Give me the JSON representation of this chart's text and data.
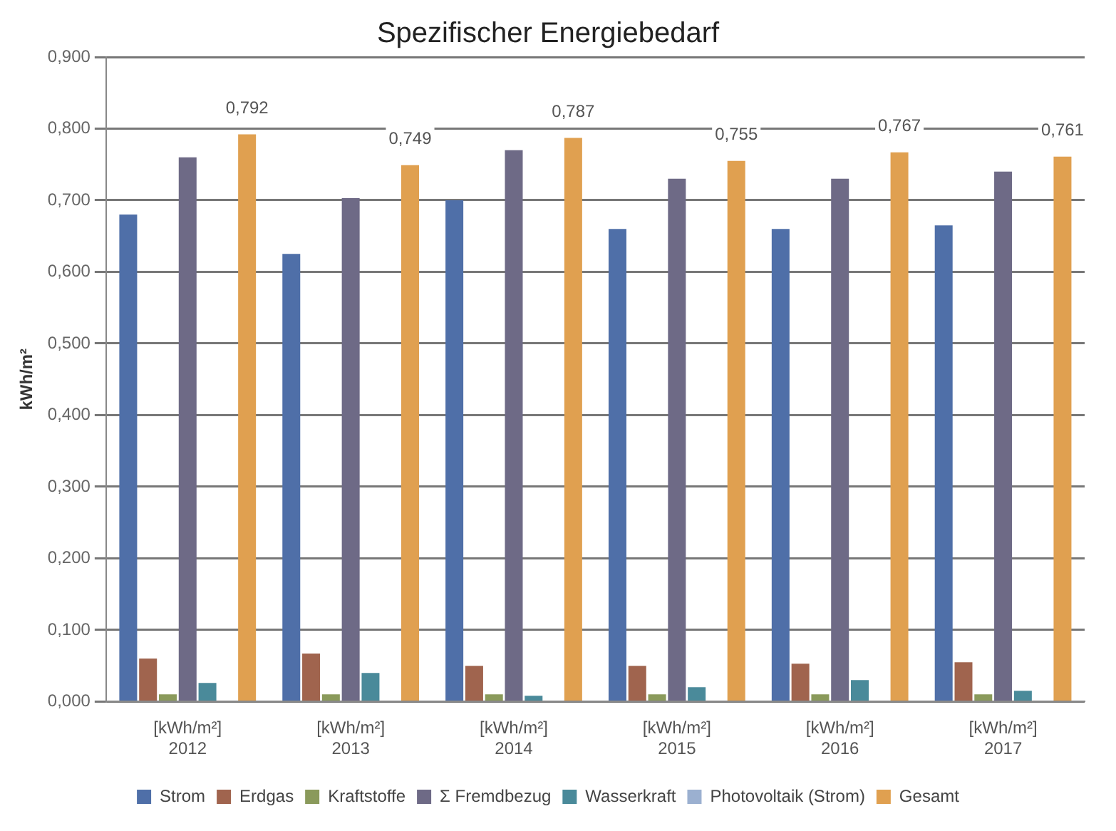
{
  "chart_data": {
    "type": "bar",
    "title": "Spezifischer Energiebedarf",
    "ylabel": "kWh/m²",
    "categories": [
      "[kWh/m²]\n2012",
      "[kWh/m²]\n2013",
      "[kWh/m²]\n2014",
      "[kWh/m²]\n2015",
      "[kWh/m²]\n2016",
      "[kWh/m²]\n2017"
    ],
    "series": [
      {
        "name": "Strom",
        "color": "#4f6fa8",
        "values": [
          0.68,
          0.625,
          0.7,
          0.66,
          0.66,
          0.665
        ]
      },
      {
        "name": "Erdgas",
        "color": "#a0644e",
        "values": [
          0.06,
          0.067,
          0.05,
          0.05,
          0.053,
          0.055
        ]
      },
      {
        "name": "Kraftstoffe",
        "color": "#8a9a5b",
        "values": [
          0.01,
          0.01,
          0.01,
          0.01,
          0.01,
          0.01
        ]
      },
      {
        "name": "Σ Fremdbezug",
        "color": "#6e6a86",
        "values": [
          0.76,
          0.703,
          0.77,
          0.73,
          0.73,
          0.74
        ]
      },
      {
        "name": "Wasserkraft",
        "color": "#4a8a9a",
        "values": [
          0.026,
          0.04,
          0.008,
          0.02,
          0.03,
          0.015
        ]
      },
      {
        "name": "Photovoltaik (Strom)",
        "color": "#9bb0d0",
        "values": [
          0,
          0,
          0,
          0,
          0,
          0
        ]
      },
      {
        "name": "Gesamt",
        "color": "#e0a050",
        "values": [
          0.792,
          0.749,
          0.787,
          0.755,
          0.767,
          0.761
        ],
        "value_labels": [
          "0,792",
          "0,749",
          "0,787",
          "0,755",
          "0,767",
          "0,761"
        ]
      }
    ],
    "ylim": [
      0,
      0.9
    ],
    "yticks": [
      {
        "value": 0,
        "label": "0,000"
      },
      {
        "value": 0.1,
        "label": "0,100"
      },
      {
        "value": 0.2,
        "label": "0,200"
      },
      {
        "value": 0.3,
        "label": "0,300"
      },
      {
        "value": 0.4,
        "label": "0,400"
      },
      {
        "value": 0.5,
        "label": "0,500"
      },
      {
        "value": 0.6,
        "label": "0,600"
      },
      {
        "value": 0.7,
        "label": "0,700"
      },
      {
        "value": 0.8,
        "label": "0,800"
      },
      {
        "value": 0.9,
        "label": "0,900"
      }
    ],
    "grid": "y",
    "legend": "bottom"
  }
}
